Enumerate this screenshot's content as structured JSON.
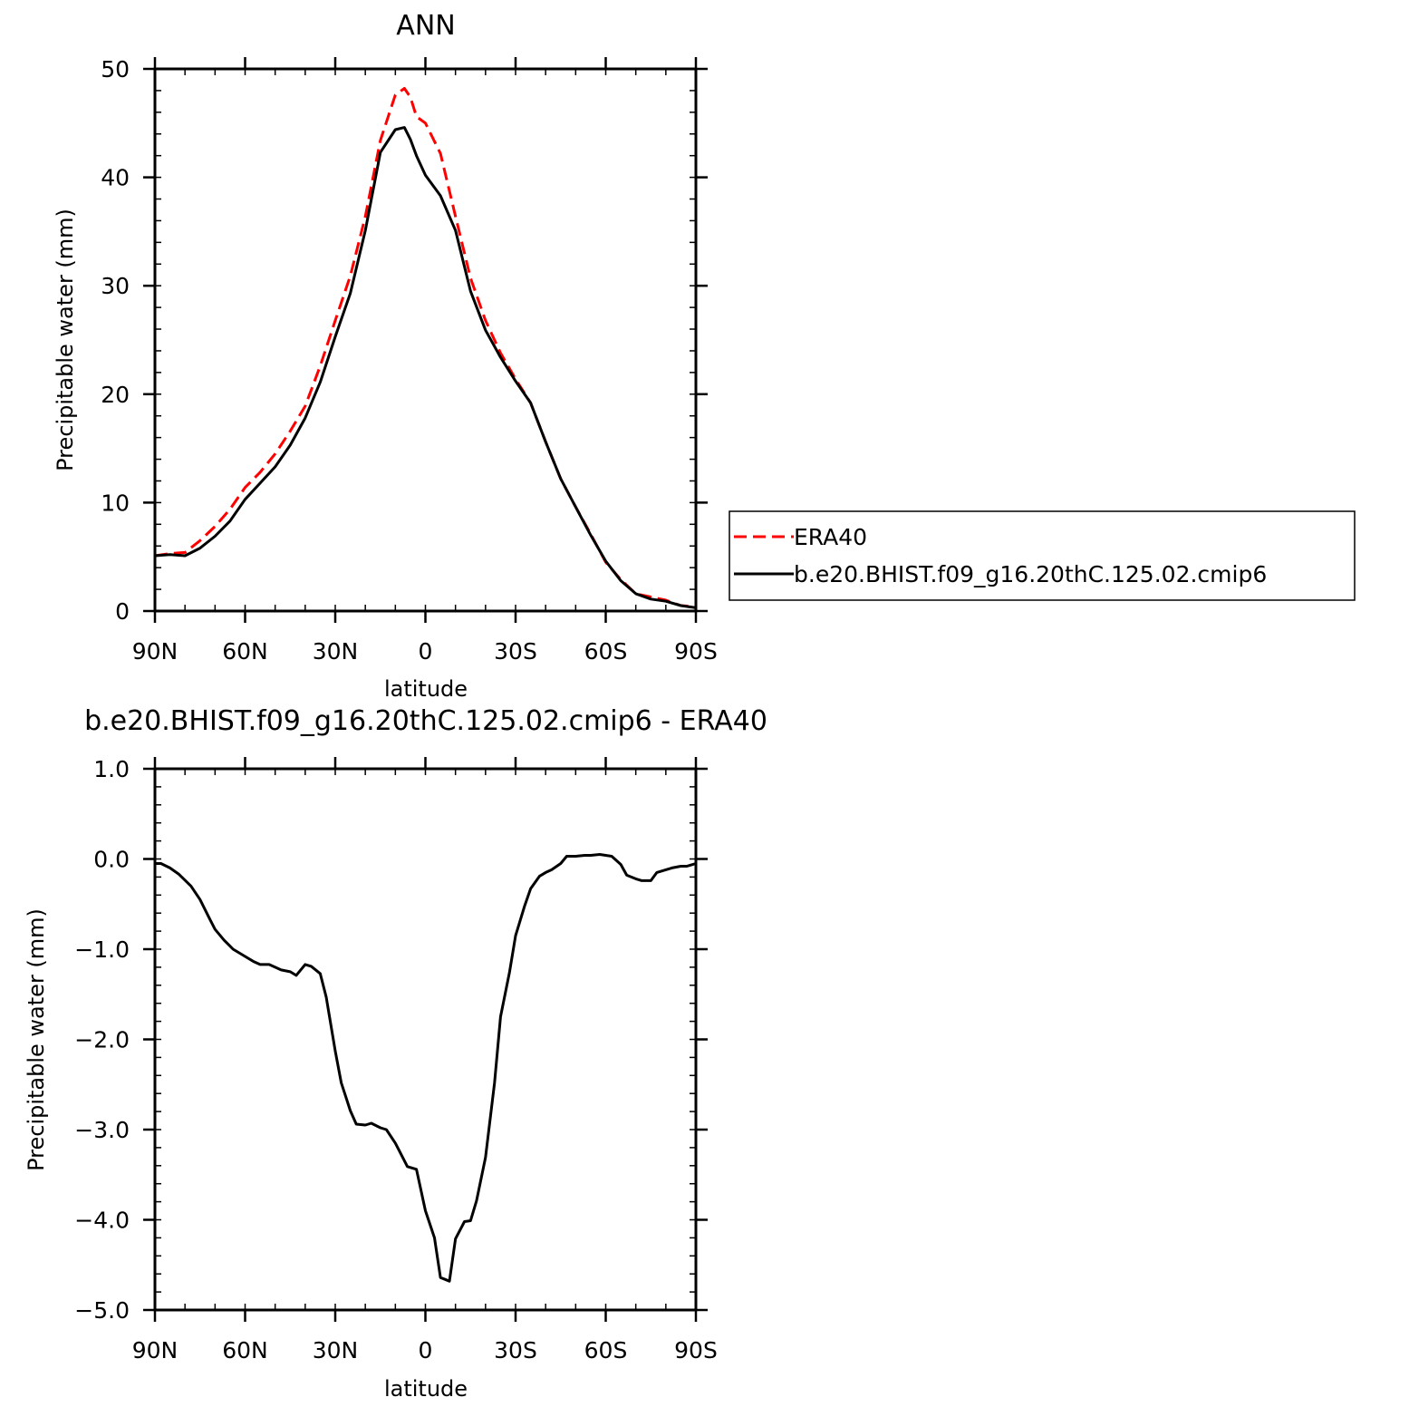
{
  "chart_data": [
    {
      "type": "line",
      "title": "ANN",
      "xlabel": "latitude",
      "ylabel": "Precipitable water (mm)",
      "xlim": [
        90,
        -90
      ],
      "ylim": [
        0,
        50
      ],
      "x_ticks": [
        90,
        60,
        30,
        0,
        -30,
        -60,
        -90
      ],
      "x_tick_labels": [
        "90N",
        "60N",
        "30N",
        "0",
        "30S",
        "60S",
        "90S"
      ],
      "y_ticks": [
        0,
        10,
        20,
        30,
        40,
        50
      ],
      "y_tick_labels": [
        "0",
        "10",
        "20",
        "30",
        "40",
        "50"
      ],
      "grid": false,
      "legend": {
        "position": "right",
        "entries": [
          "ERA40",
          "b.e20.BHIST.f09_g16.20thC.125.02.cmip6"
        ]
      },
      "series": [
        {
          "name": "ERA40",
          "color": "#ff0000",
          "style": "dashed",
          "x": [
            90,
            85,
            80,
            75,
            70,
            65,
            60,
            55,
            50,
            45,
            40,
            35,
            30,
            25,
            20,
            15,
            10,
            7,
            5,
            3,
            0,
            -5,
            -10,
            -15,
            -20,
            -25,
            -30,
            -35,
            -40,
            -45,
            -50,
            -55,
            -60,
            -65,
            -70,
            -75,
            -80,
            -85,
            -90
          ],
          "y": [
            5.1,
            5.3,
            5.4,
            6.5,
            7.8,
            9.4,
            11.4,
            12.8,
            14.5,
            16.6,
            18.9,
            22.6,
            26.8,
            30.9,
            36.4,
            43.4,
            47.6,
            48.2,
            47.4,
            45.6,
            45,
            42.2,
            36.4,
            30.7,
            26.8,
            23.8,
            21.4,
            19.2,
            15.6,
            12.2,
            9.6,
            7.1,
            4.5,
            2.9,
            1.6,
            1.3,
            1,
            0.5,
            0.4
          ]
        },
        {
          "name": "b.e20.BHIST.f09_g16.20thC.125.02.cmip6",
          "color": "#000000",
          "style": "solid",
          "x": [
            90,
            85,
            80,
            75,
            70,
            65,
            60,
            55,
            50,
            45,
            40,
            35,
            30,
            25,
            20,
            15,
            10,
            7,
            5,
            3,
            0,
            -5,
            -10,
            -15,
            -20,
            -25,
            -30,
            -35,
            -40,
            -45,
            -50,
            -55,
            -60,
            -65,
            -70,
            -75,
            -80,
            -85,
            -90
          ],
          "y": [
            5.1,
            5.2,
            5.1,
            5.8,
            6.9,
            8.3,
            10.3,
            11.8,
            13.3,
            15.3,
            17.8,
            21.1,
            25.3,
            29.3,
            35.1,
            42.3,
            44.4,
            44.6,
            43.5,
            42,
            40.2,
            38.3,
            35.1,
            29.5,
            25.9,
            23.4,
            21.2,
            19.2,
            15.6,
            12.2,
            9.6,
            7,
            4.6,
            2.8,
            1.6,
            1.1,
            0.9,
            0.5,
            0.3
          ]
        }
      ]
    },
    {
      "type": "line",
      "title": "b.e20.BHIST.f09_g16.20thC.125.02.cmip6 - ERA40",
      "xlabel": "latitude",
      "ylabel": "Precipitable water (mm)",
      "xlim": [
        90,
        -90
      ],
      "ylim": [
        -5,
        1
      ],
      "x_ticks": [
        90,
        60,
        30,
        0,
        -30,
        -60,
        -90
      ],
      "x_tick_labels": [
        "90N",
        "60N",
        "30N",
        "0",
        "30S",
        "60S",
        "90S"
      ],
      "y_ticks": [
        1,
        0,
        -1,
        -2,
        -3,
        -4,
        -5
      ],
      "y_tick_labels": [
        "1.0",
        "0.0",
        "−1.0",
        "−2.0",
        "−3.0",
        "−4.0",
        "−5.0"
      ],
      "grid": false,
      "series": [
        {
          "color": "#000000",
          "style": "solid",
          "x": [
            90,
            88,
            85,
            82,
            78,
            75,
            72,
            70,
            67,
            64,
            60,
            57,
            55,
            52,
            50,
            48,
            45,
            43,
            40,
            38,
            35,
            33,
            30,
            28,
            25,
            23,
            20,
            18,
            15,
            13,
            10,
            8,
            6,
            3,
            0,
            -3,
            -5,
            -8,
            -10,
            -13,
            -15,
            -17,
            -20,
            -23,
            -25,
            -28,
            -30,
            -33,
            -35,
            -38,
            -40,
            -42,
            -45,
            -47,
            -50,
            -53,
            -55,
            -58,
            -60,
            -62,
            -65,
            -67,
            -70,
            -72,
            -75,
            -77,
            -80,
            -82,
            -85,
            -87,
            -90
          ],
          "y": [
            -0.05,
            -0.05,
            -0.1,
            -0.17,
            -0.3,
            -0.45,
            -0.65,
            -0.78,
            -0.9,
            -1.0,
            -1.08,
            -1.14,
            -1.17,
            -1.17,
            -1.2,
            -1.23,
            -1.25,
            -1.29,
            -1.17,
            -1.19,
            -1.27,
            -1.53,
            -2.13,
            -2.48,
            -2.79,
            -2.94,
            -2.95,
            -2.93,
            -2.98,
            -3.0,
            -3.15,
            -3.28,
            -3.41,
            -3.44,
            -3.9,
            -4.2,
            -4.64,
            -4.68,
            -4.21,
            -4.02,
            -4.01,
            -3.79,
            -3.31,
            -2.48,
            -1.75,
            -1.25,
            -0.85,
            -0.52,
            -0.33,
            -0.19,
            -0.15,
            -0.12,
            -0.05,
            0.03,
            0.03,
            0.04,
            0.04,
            0.05,
            0.04,
            0.03,
            -0.06,
            -0.18,
            -0.22,
            -0.24,
            -0.24,
            -0.15,
            -0.12,
            -0.1,
            -0.08,
            -0.08,
            -0.05
          ]
        }
      ]
    }
  ]
}
